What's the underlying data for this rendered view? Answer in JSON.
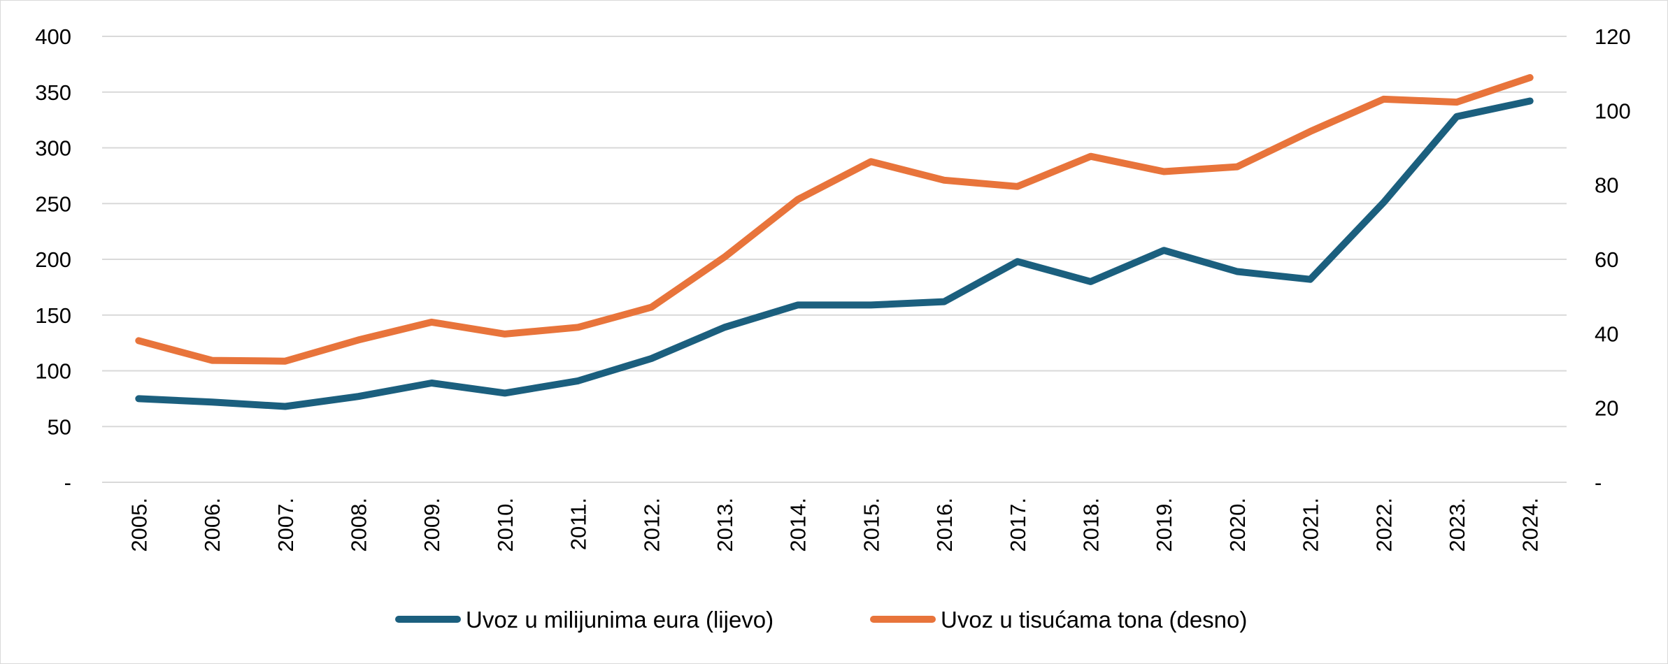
{
  "chart_data": {
    "type": "line",
    "categories": [
      "2005.",
      "2006.",
      "2007.",
      "2008.",
      "2009.",
      "2010.",
      "2011.",
      "2012.",
      "2013.",
      "2014.",
      "2015.",
      "2016.",
      "2017.",
      "2018.",
      "2019.",
      "2020.",
      "2021.",
      "2022.",
      "2023.",
      "2024."
    ],
    "y_left": {
      "range": [
        0,
        400
      ],
      "ticks": [
        {
          "value": 0,
          "label": "-"
        },
        {
          "value": 50,
          "label": "50"
        },
        {
          "value": 100,
          "label": "100"
        },
        {
          "value": 150,
          "label": "150"
        },
        {
          "value": 200,
          "label": "200"
        },
        {
          "value": 250,
          "label": "250"
        },
        {
          "value": 300,
          "label": "300"
        },
        {
          "value": 350,
          "label": "350"
        },
        {
          "value": 400,
          "label": "400"
        }
      ]
    },
    "y_right": {
      "range": [
        0,
        120
      ],
      "ticks": [
        {
          "value": 0,
          "label": "-"
        },
        {
          "value": 20,
          "label": "20"
        },
        {
          "value": 40,
          "label": "40"
        },
        {
          "value": 60,
          "label": "60"
        },
        {
          "value": 80,
          "label": "80"
        },
        {
          "value": 100,
          "label": "100"
        },
        {
          "value": 120,
          "label": "120"
        }
      ]
    },
    "series": [
      {
        "name": "Uvoz u milijunima eura (lijevo)",
        "axis": "left",
        "color": "#1b5f7e",
        "values": [
          75,
          72,
          68,
          77,
          89,
          80,
          91,
          111,
          139,
          159,
          159,
          162,
          198,
          180,
          208,
          189,
          182,
          251,
          328,
          342
        ]
      },
      {
        "name": "Uvoz u tisućama tona (desno)",
        "axis": "right",
        "color": "#e8743b",
        "values": [
          38.1,
          32.8,
          32.6,
          38.3,
          43.1,
          39.9,
          41.7,
          47.1,
          60.6,
          76.1,
          86.3,
          81.3,
          79.6,
          87.7,
          83.6,
          84.9,
          94.4,
          103.1,
          102.3,
          108.9
        ]
      }
    ],
    "grid": true,
    "legend_position": "bottom-center"
  }
}
